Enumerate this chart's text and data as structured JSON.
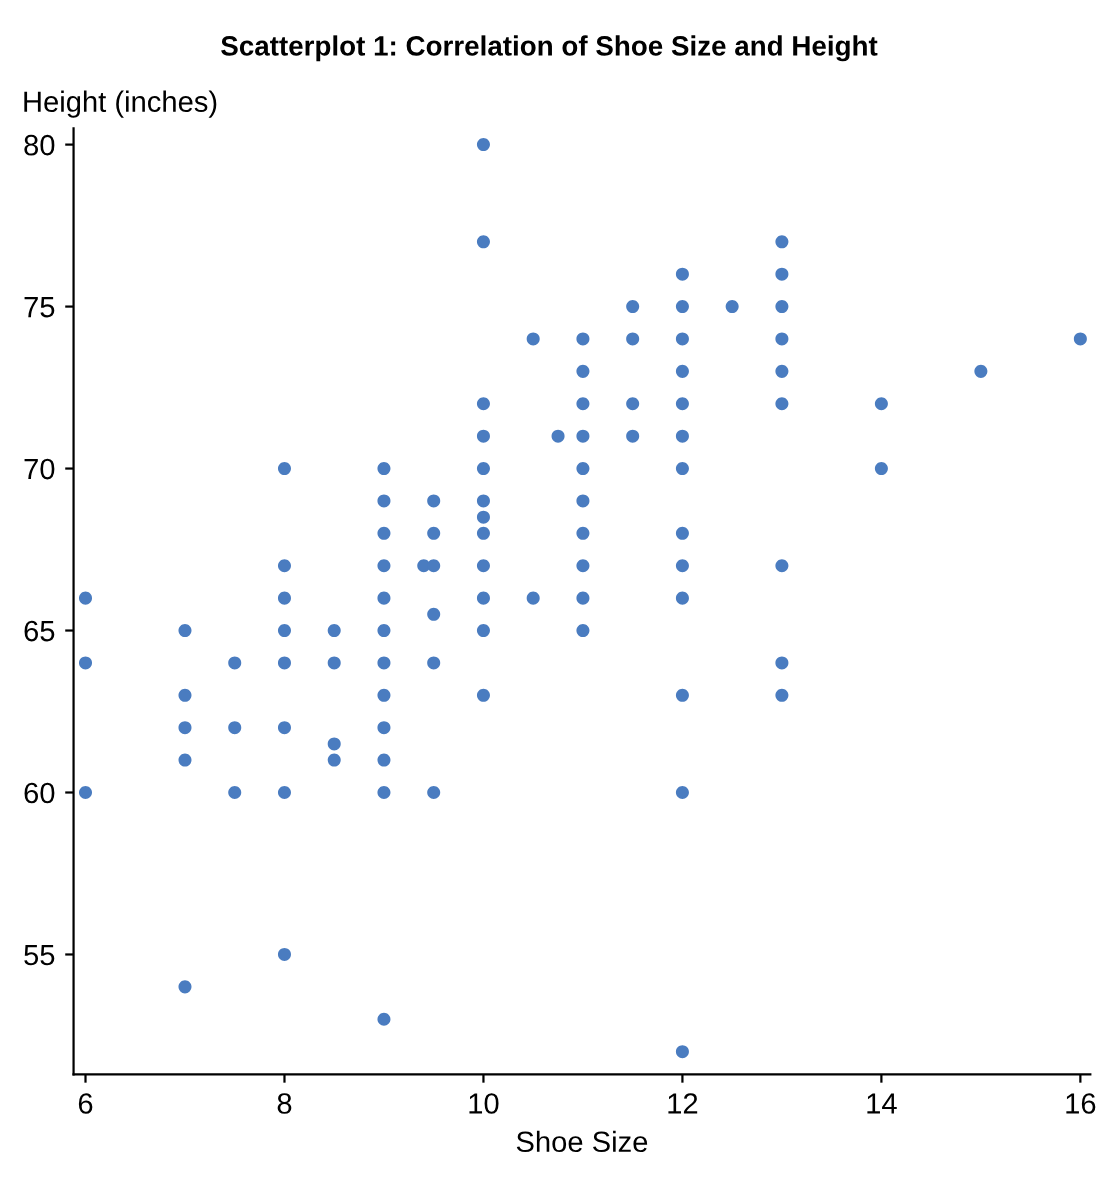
{
  "chart_data": {
    "type": "scatter",
    "title": "Scatterplot 1: Correlation of Shoe Size and Height",
    "xlabel": "Shoe Size",
    "ylabel": "Height (inches)",
    "series": [
      {
        "color": "#4a7cc0",
        "x": [
          6,
          6,
          6,
          7,
          7,
          7,
          7,
          7,
          7.5,
          7.5,
          7.5,
          8,
          8,
          8,
          8,
          8,
          8,
          8,
          8,
          8.5,
          8.5,
          8.5,
          8.5,
          9,
          9,
          9,
          9,
          9,
          9,
          9,
          9,
          9,
          9,
          9,
          9,
          9.4,
          9.5,
          9.5,
          9.5,
          9.5,
          9.5,
          9.5,
          10,
          10,
          10,
          10,
          10,
          10,
          10,
          10,
          10,
          10,
          10,
          10,
          10.5,
          10.5,
          10.75,
          11,
          11,
          11,
          11,
          11,
          11,
          11,
          11,
          11,
          11,
          11.5,
          11.5,
          11.5,
          11.5,
          12,
          12,
          12,
          12,
          12,
          12,
          12,
          12,
          12,
          12,
          12,
          12,
          12,
          12.5,
          13,
          13,
          13,
          13,
          13,
          13,
          13,
          13,
          13,
          14,
          14,
          15,
          16
        ],
        "values": [
          66,
          64,
          60,
          65,
          63,
          62,
          61,
          54,
          64,
          62,
          60,
          70,
          67,
          66,
          65,
          64,
          62,
          60,
          55,
          65,
          64,
          61.5,
          61,
          70,
          69,
          68,
          67,
          66,
          65,
          64,
          63,
          62,
          61,
          60,
          53,
          67,
          69,
          68,
          67,
          65.5,
          64,
          60,
          80,
          77,
          72,
          71,
          70,
          69,
          68.5,
          68,
          67,
          66,
          65,
          63,
          74,
          66,
          71,
          74,
          73,
          72,
          71,
          70,
          69,
          68,
          67,
          66,
          65,
          75,
          74,
          72,
          71,
          76,
          75,
          74,
          73,
          72,
          71,
          70,
          68,
          67,
          66,
          63,
          60,
          52,
          75,
          77,
          76,
          75,
          74,
          73,
          72,
          67,
          64,
          63,
          72,
          70,
          73,
          74
        ]
      }
    ],
    "xlim": [
      5.88,
      16.1
    ],
    "ylim": [
      51.3,
      80.5
    ],
    "xticks": [
      6,
      8,
      10,
      12,
      14,
      16
    ],
    "yticks": [
      55,
      60,
      65,
      70,
      75,
      80
    ],
    "marker": "circle",
    "grid": false,
    "legend": false
  }
}
